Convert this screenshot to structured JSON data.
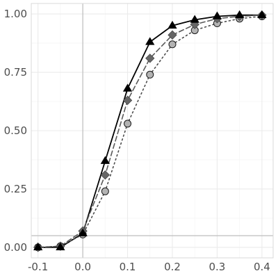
{
  "chart_data": {
    "type": "line",
    "title": "",
    "xlabel": "",
    "ylabel": "",
    "x": [
      -0.1,
      -0.05,
      0.0,
      0.05,
      0.1,
      0.15,
      0.2,
      0.25,
      0.3,
      0.35,
      0.4
    ],
    "xlim": [
      -0.115,
      0.425
    ],
    "ylim": [
      -0.045,
      1.045
    ],
    "x_ticks": [
      -0.1,
      0.0,
      0.1,
      0.2,
      0.3,
      0.4
    ],
    "x_tick_labels": [
      "-0.1",
      "0.0",
      "0.1",
      "0.2",
      "0.3",
      "0.4"
    ],
    "y_ticks": [
      0.0,
      0.25,
      0.5,
      0.75,
      1.0
    ],
    "y_tick_labels": [
      "0.00",
      "0.25",
      "0.50",
      "0.75",
      "1.00"
    ],
    "grid": true,
    "reference_lines": {
      "vertical_x": 0.0,
      "horizontal_y": 0.05
    },
    "series": [
      {
        "marker": "triangle",
        "line_style": "solid",
        "fill": "#000000",
        "values": [
          0.0,
          0.0,
          0.06,
          0.37,
          0.68,
          0.88,
          0.95,
          0.975,
          0.99,
          0.995,
          0.995
        ]
      },
      {
        "marker": "diamond",
        "line_style": "dashed",
        "fill": "#666666",
        "values": [
          0.0,
          0.005,
          0.07,
          0.31,
          0.63,
          0.81,
          0.91,
          0.955,
          0.98,
          0.99,
          0.995
        ]
      },
      {
        "marker": "circle",
        "line_style": "dotted",
        "fill": "#b3b3b3",
        "values": [
          0.0,
          0.005,
          0.055,
          0.24,
          0.53,
          0.74,
          0.87,
          0.93,
          0.96,
          0.98,
          0.99
        ]
      }
    ]
  },
  "colors": {
    "panel_background": "#ffffff",
    "grid_major": "#ebebeb",
    "grid_minor": "#f5f5f5",
    "panel_border": "#d9d9d9",
    "reference_line": "#bdbdbd",
    "tick_text": "#4d4d4d"
  }
}
